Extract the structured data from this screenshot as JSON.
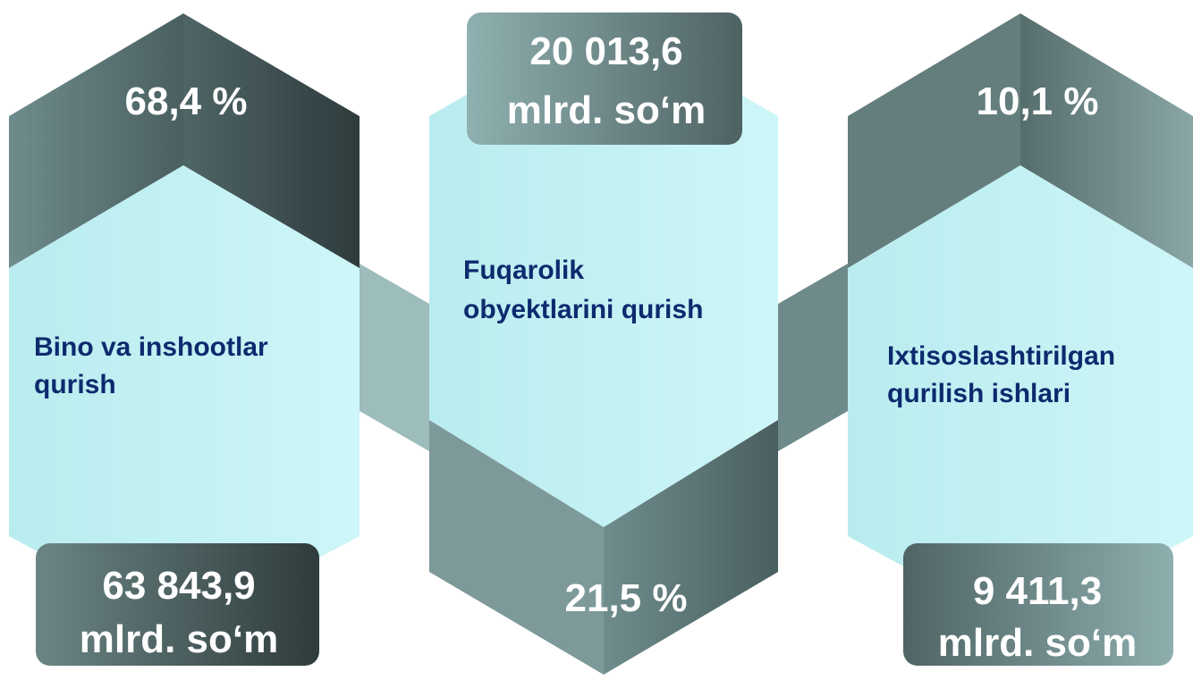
{
  "items": [
    {
      "label": [
        "Bino va inshootlar",
        "qurish"
      ],
      "share": "68,4 %",
      "amount": [
        "63 843,9",
        "mlrd. so‘m"
      ]
    },
    {
      "label": [
        "Fuqarolik",
        "obyektlarini qurish"
      ],
      "share": "21,5 %",
      "amount": [
        "20 013,6",
        "mlrd. so‘m"
      ]
    },
    {
      "label": [
        "Ixtisoslashtirilgan",
        "qurilish ishlari"
      ],
      "share": "10,1 %",
      "amount": [
        "9 411,3",
        "mlrd. so‘m"
      ]
    }
  ]
}
